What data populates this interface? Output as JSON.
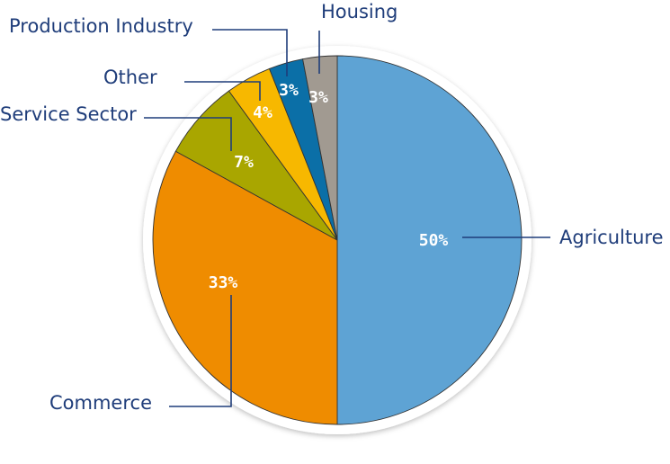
{
  "chart_data": {
    "type": "pie",
    "slices": [
      {
        "label": "Agriculture",
        "value": 50,
        "value_label": "50%",
        "color": "#5ea3d4"
      },
      {
        "label": "Commerce",
        "value": 33,
        "value_label": "33%",
        "color": "#ef8c00"
      },
      {
        "label": "Service Sector",
        "value": 7,
        "value_label": "7%",
        "color": "#a9a600"
      },
      {
        "label": "Other",
        "value": 4,
        "value_label": "4%",
        "color": "#f7b800"
      },
      {
        "label": "Production Industry",
        "value": 3,
        "value_label": "3%",
        "color": "#0b6fa7"
      },
      {
        "label": "Housing",
        "value": 3,
        "value_label": "3%",
        "color": "#a19a91"
      }
    ],
    "start_angle": "12 o'clock",
    "direction": "clockwise",
    "legend": "none",
    "label_color": "#1f3d7a",
    "value_text_color": "#ffffff"
  }
}
